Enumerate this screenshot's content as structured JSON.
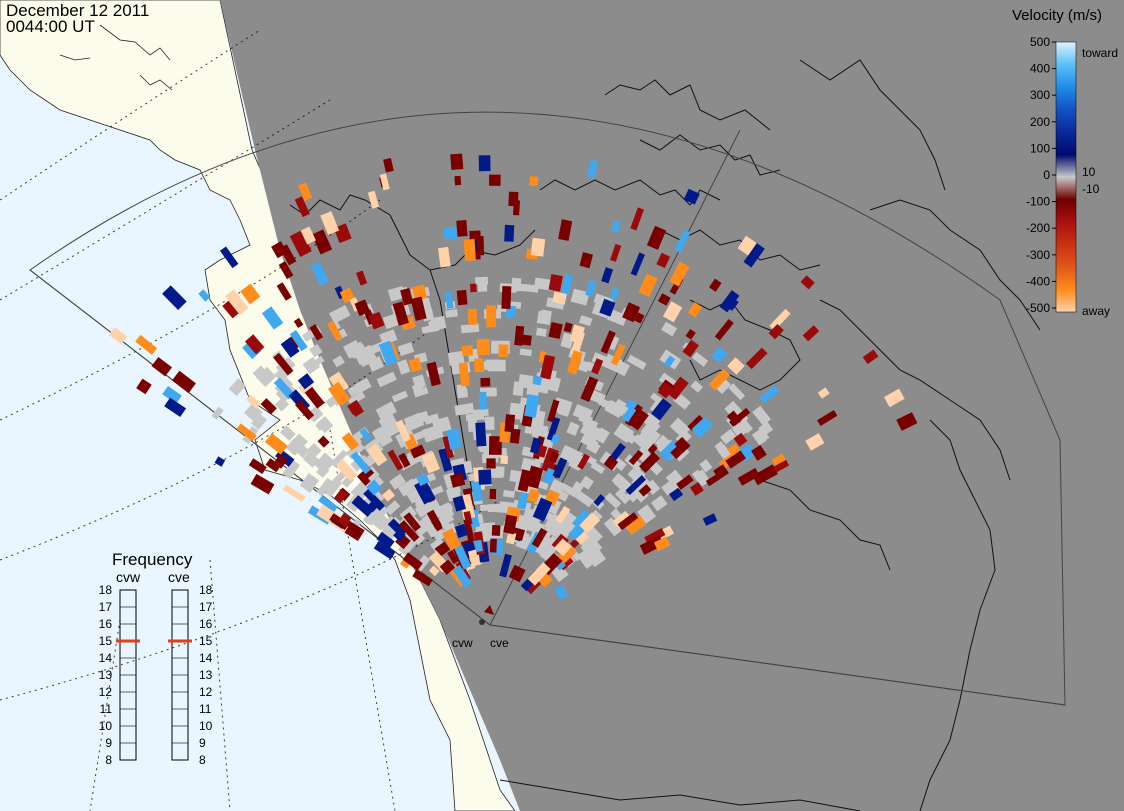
{
  "header": {
    "date": "December 12 2011",
    "time": "0044:00 UT"
  },
  "legend": {
    "title": "Velocity (m/s)",
    "tick_values": [
      "500",
      "400",
      "300",
      "200",
      "100",
      "0",
      "-100",
      "-200",
      "-300",
      "-400",
      "-500"
    ],
    "toward_label": "toward",
    "away_label": "away",
    "ground_scatter_upper": "10",
    "ground_scatter_lower": "-10",
    "gradient_colors": [
      "#dff1ff",
      "#5bc0f5",
      "#1e8de8",
      "#1352c4",
      "#0a2a9a",
      "#000a6e",
      "#c8c8c8",
      "#6e0000",
      "#aa1010",
      "#c83212",
      "#e0581a",
      "#ff8c1a",
      "#ffd2aa"
    ]
  },
  "radars": {
    "west_name": "cvw",
    "east_name": "cve"
  },
  "frequency": {
    "title": "Frequency",
    "left_label": "cvw",
    "right_label": "cve",
    "scale": [
      "18",
      "17",
      "16",
      "15",
      "14",
      "13",
      "12",
      "11",
      "10",
      "9",
      "8"
    ],
    "cvw_value": 15,
    "cve_value": 15,
    "marker_color": "#e0401a"
  },
  "colors": {
    "night_side": "#8c8c8c",
    "ocean_day": "#eaf6ff",
    "land_day": "#fcfced",
    "ground_scatter": "#c8c8c8",
    "away_dark": "#7a0000",
    "away_orange": "#ff8c1a",
    "toward_dark": "#001a8a",
    "toward_light": "#3fa8f0"
  }
}
